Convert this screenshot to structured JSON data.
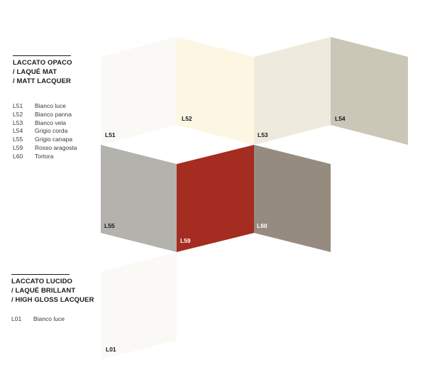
{
  "matt": {
    "heading": [
      "LACCATO OPACO",
      "/ LAQUÉ MAT",
      "/ MATT LACQUER"
    ],
    "items": [
      {
        "code": "L51",
        "name": "Bianco luce"
      },
      {
        "code": "L52",
        "name": "Bianco panna"
      },
      {
        "code": "L53",
        "name": "Bianco vela"
      },
      {
        "code": "L54",
        "name": "Grigio corda"
      },
      {
        "code": "L55",
        "name": "Grigio canapa"
      },
      {
        "code": "L59",
        "name": "Rosso aragosta"
      },
      {
        "code": "L60",
        "name": "Tortora"
      }
    ]
  },
  "gloss": {
    "heading": [
      "LACCATO LUCIDO",
      "/ LAQUÉ BRILLANT",
      "/ HIGH GLOSS LACQUER"
    ],
    "items": [
      {
        "code": "L01",
        "name": "Bianco luce"
      }
    ]
  },
  "swatches": [
    {
      "code": "L51",
      "color": "#faf9f5",
      "label_color": "#1a1a1a"
    },
    {
      "code": "L52",
      "color": "#fcf6e3",
      "label_color": "#1a1a1a"
    },
    {
      "code": "L53",
      "color": "#eeebde",
      "label_color": "#1a1a1a"
    },
    {
      "code": "L54",
      "color": "#cac7b7",
      "label_color": "#1a1a1a"
    },
    {
      "code": "L55",
      "color": "#b3b2ad",
      "label_color": "#1a1a1a"
    },
    {
      "code": "L59",
      "color": "#a42c20",
      "label_color": "#ffffff"
    },
    {
      "code": "L60",
      "color": "#958c7f",
      "label_color": "#ffffff"
    },
    {
      "code": "L01",
      "color": "#faf9f5",
      "label_color": "#1a1a1a"
    }
  ]
}
